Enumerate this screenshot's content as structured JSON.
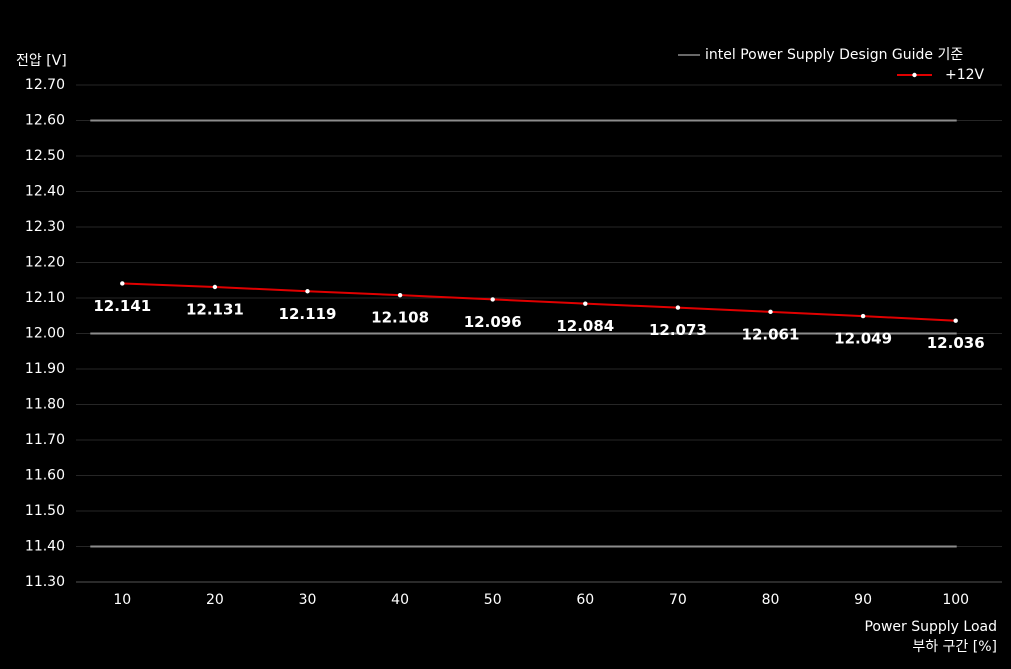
{
  "chart_data": {
    "type": "line",
    "y_label": "전압 [V]",
    "x_label": [
      "Power Supply Load",
      "부하 구간 [%]"
    ],
    "categories": [
      "10",
      "20",
      "30",
      "40",
      "50",
      "60",
      "70",
      "80",
      "90",
      "100"
    ],
    "series": [
      {
        "name": "+12V",
        "color": "#e00000",
        "values": [
          12.141,
          12.131,
          12.119,
          12.108,
          12.096,
          12.084,
          12.073,
          12.061,
          12.049,
          12.036
        ]
      }
    ],
    "reference_lines": {
      "name": "intel Power Supply Design Guide 기준",
      "color": "#8c8c8c",
      "values": [
        12.6,
        12.0,
        11.4
      ]
    },
    "ylim": [
      11.3,
      12.7
    ],
    "yticks": [
      {
        "value": 11.3,
        "label": "11.30"
      },
      {
        "value": 11.4,
        "label": "11.40"
      },
      {
        "value": 11.5,
        "label": "11.50"
      },
      {
        "value": 11.6,
        "label": "11.60"
      },
      {
        "value": 11.7,
        "label": "11.70"
      },
      {
        "value": 11.8,
        "label": "11.80"
      },
      {
        "value": 11.9,
        "label": "11.90"
      },
      {
        "value": 12.0,
        "label": "12.00"
      },
      {
        "value": 12.1,
        "label": "12.10"
      },
      {
        "value": 12.2,
        "label": "12.20"
      },
      {
        "value": 12.3,
        "label": "12.30"
      },
      {
        "value": 12.4,
        "label": "12.40"
      },
      {
        "value": 12.5,
        "label": "12.50"
      },
      {
        "value": 12.6,
        "label": "12.60"
      },
      {
        "value": 12.7,
        "label": "12.70"
      }
    ],
    "grid": true,
    "legend": "top-right"
  }
}
